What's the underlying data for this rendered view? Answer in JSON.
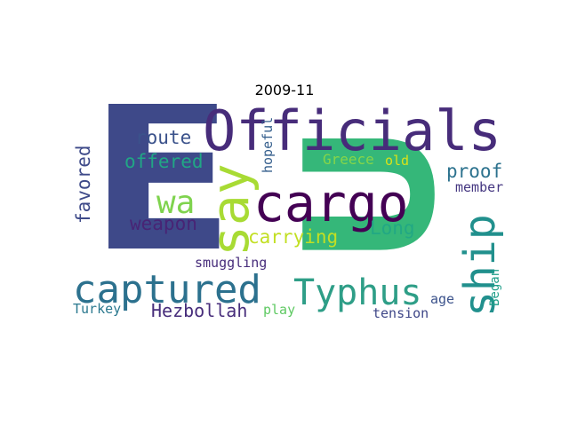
{
  "title": "2009-11",
  "words": {
    "E": "E",
    "U": "U",
    "officials": "Officials",
    "say": "say",
    "cargo": "cargo",
    "ship": "ship",
    "captured": "captured",
    "typhus": "Typhus",
    "wa": "wa",
    "route": "route",
    "offered": "offered",
    "favored": "favored",
    "hopeful": "hopeful",
    "greece": "Greece",
    "old": "old",
    "proof": "proof",
    "member": "member",
    "weapon": "weapon",
    "carrying": "carrying",
    "long": "Long",
    "smuggling": "smuggling",
    "hezbollah": "Hezbollah",
    "play": "play",
    "turkey": "Turkey",
    "age": "age",
    "began": "Began",
    "tension": "tension"
  },
  "colors": {
    "dark_purple": "#440154",
    "purple": "#472c7a",
    "indigo": "#3b518b",
    "blue": "#2c718e",
    "teal": "#21908d",
    "green": "#27ad81",
    "light_green": "#5cc863",
    "lime": "#aadc32",
    "yellow": "#d8e219",
    "navy": "#3e4989"
  }
}
